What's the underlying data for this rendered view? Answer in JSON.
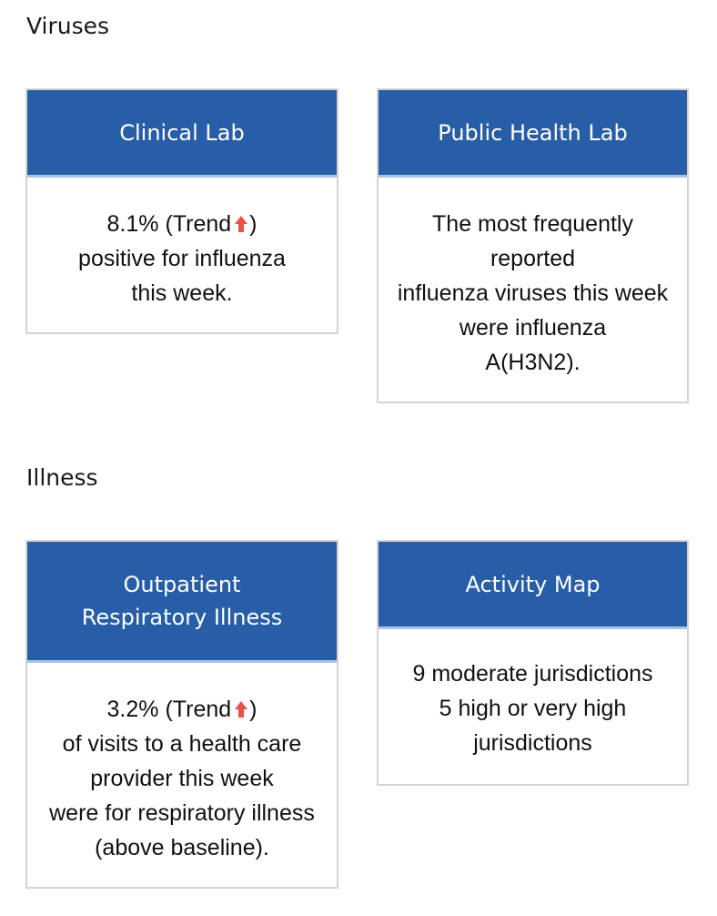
{
  "sections": [
    {
      "title": "Viruses",
      "cards": [
        {
          "header": [
            "Clinical Lab"
          ],
          "body": {
            "line1_pre": "8.1% (Trend",
            "line1_post": ")",
            "lines": [
              "positive for influenza",
              "this week."
            ]
          }
        },
        {
          "header": [
            "Public Health Lab"
          ],
          "body": {
            "lines": [
              "The most frequently",
              "reported",
              "influenza viruses this week",
              "were influenza",
              "A(H3N2)."
            ]
          }
        }
      ]
    },
    {
      "title": "Illness",
      "cards": [
        {
          "header": [
            "Outpatient",
            "Respiratory Illness"
          ],
          "body": {
            "line1_pre": "3.2% (Trend",
            "line1_post": ")",
            "lines": [
              "of visits to a health care",
              "provider this week",
              "were for respiratory illness",
              "(above baseline)."
            ]
          }
        },
        {
          "header": [
            "Activity Map"
          ],
          "body": {
            "lines": [
              "9 moderate jurisdictions",
              "5 high or very high",
              "jurisdictions"
            ]
          }
        }
      ]
    }
  ],
  "colors": {
    "header_bg": "#285ea8",
    "header_underline": "#a8c4e8",
    "trend_up": "#e5534b",
    "card_border": "#d4d4d4"
  },
  "icons": {
    "trend": "arrow-up-icon"
  }
}
